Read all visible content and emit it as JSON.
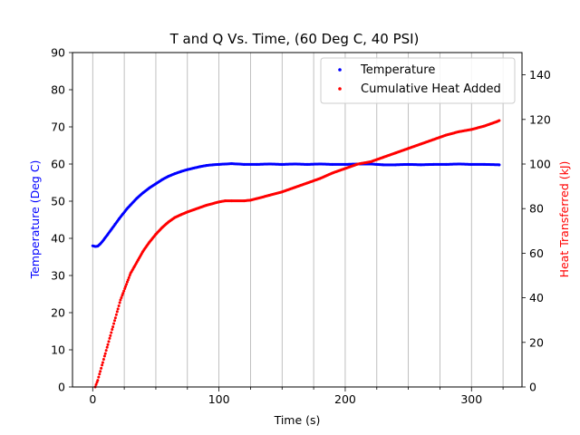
{
  "chart_data": {
    "type": "scatter",
    "title": "T and Q Vs. Time, (60 Deg C, 40 PSI)",
    "xlabel": "Time (s)",
    "ylabel_left": "Temperature (Deg C)",
    "ylabel_right": "Heat Transferred (kJ)",
    "xlim": [
      -16,
      340
    ],
    "ylim_left": [
      0,
      90
    ],
    "ylim_right": [
      0,
      150
    ],
    "xticks": [
      0,
      100,
      200,
      300
    ],
    "yticks_left": [
      0,
      10,
      20,
      30,
      40,
      50,
      60,
      70,
      80,
      90
    ],
    "yticks_right": [
      0,
      20,
      40,
      60,
      80,
      100,
      120,
      140
    ],
    "vertical_grid_lines": [
      0,
      25,
      50,
      75,
      100,
      125,
      150,
      175,
      200,
      225,
      250,
      275,
      300,
      325
    ],
    "grid": "vertical only",
    "legend_position": "top-right",
    "colors": {
      "temperature": "#0000ff",
      "heat": "#ff0000",
      "left_axis_label": "#0000ff",
      "right_axis_label": "#ff0000",
      "grid": "#b0b0b0"
    },
    "series": [
      {
        "name": "Temperature",
        "axis": "left",
        "color": "#0000ff",
        "x": [
          0,
          2,
          4,
          6,
          8,
          10,
          12,
          15,
          18,
          21,
          24,
          27,
          30,
          35,
          40,
          45,
          50,
          55,
          60,
          65,
          70,
          75,
          80,
          85,
          90,
          95,
          100,
          105,
          110,
          115,
          120,
          130,
          140,
          150,
          160,
          170,
          180,
          190,
          200,
          210,
          220,
          230,
          240,
          250,
          260,
          270,
          280,
          290,
          300,
          310,
          322
        ],
        "y": [
          38,
          37.8,
          37.9,
          38.5,
          39.3,
          40.2,
          41.1,
          42.5,
          43.9,
          45.3,
          46.6,
          47.9,
          49.0,
          50.8,
          52.3,
          53.6,
          54.7,
          55.8,
          56.7,
          57.4,
          58.0,
          58.5,
          58.9,
          59.3,
          59.6,
          59.8,
          59.9,
          60.0,
          60.1,
          60.0,
          59.9,
          59.9,
          60.0,
          59.9,
          60.0,
          59.9,
          60.0,
          59.9,
          59.9,
          60.0,
          60.0,
          59.8,
          59.8,
          59.9,
          59.8,
          59.9,
          59.9,
          60.0,
          59.9,
          59.9,
          59.8
        ]
      },
      {
        "name": "Cumulative Heat Added",
        "axis": "right",
        "color": "#ff0000",
        "x": [
          2,
          4,
          6,
          8,
          10,
          12,
          14,
          16,
          18,
          20,
          22,
          24,
          26,
          28,
          30,
          33,
          36,
          40,
          45,
          50,
          55,
          60,
          65,
          70,
          75,
          80,
          90,
          100,
          105,
          110,
          120,
          125,
          130,
          140,
          150,
          160,
          170,
          180,
          190,
          200,
          210,
          220,
          230,
          240,
          250,
          260,
          270,
          280,
          290,
          300,
          310,
          320,
          322
        ],
        "y": [
          0,
          3,
          7,
          11,
          15,
          19,
          23,
          27,
          31,
          35,
          39,
          42,
          45,
          48,
          51,
          54,
          57,
          61,
          65,
          68.5,
          71.5,
          74,
          76,
          77.3,
          78.5,
          79.5,
          81.5,
          83,
          83.5,
          83.5,
          83.5,
          83.8,
          84.5,
          86,
          87.5,
          89.5,
          91.5,
          93.5,
          96,
          98,
          100,
          101,
          103,
          105,
          107,
          109,
          111,
          113,
          114.5,
          115.5,
          117,
          119,
          119.5
        ]
      }
    ]
  }
}
